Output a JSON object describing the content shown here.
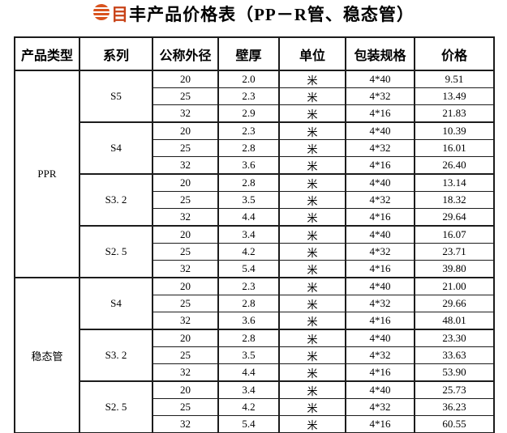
{
  "title": {
    "brand_colored_char": "目",
    "text": "丰产品价格表（PP－R管、稳态管）",
    "accent_color": "#d9531e",
    "brand_char_color": "#c84318"
  },
  "table": {
    "headers": [
      "产品类型",
      "系列",
      "公称外径",
      "壁厚",
      "单位",
      "包装规格",
      "价格"
    ],
    "groups": [
      {
        "product_type": "PPR",
        "series": [
          {
            "name": "S5",
            "rows": [
              [
                "20",
                "2.0",
                "米",
                "4*40",
                "9.51"
              ],
              [
                "25",
                "2.3",
                "米",
                "4*32",
                "13.49"
              ],
              [
                "32",
                "2.9",
                "米",
                "4*16",
                "21.83"
              ]
            ]
          },
          {
            "name": "S4",
            "rows": [
              [
                "20",
                "2.3",
                "米",
                "4*40",
                "10.39"
              ],
              [
                "25",
                "2.8",
                "米",
                "4*32",
                "16.01"
              ],
              [
                "32",
                "3.6",
                "米",
                "4*16",
                "26.40"
              ]
            ]
          },
          {
            "name": "S3. 2",
            "rows": [
              [
                "20",
                "2.8",
                "米",
                "4*40",
                "13.14"
              ],
              [
                "25",
                "3.5",
                "米",
                "4*32",
                "18.32"
              ],
              [
                "32",
                "4.4",
                "米",
                "4*16",
                "29.64"
              ]
            ]
          },
          {
            "name": "S2. 5",
            "rows": [
              [
                "20",
                "3.4",
                "米",
                "4*40",
                "16.07"
              ],
              [
                "25",
                "4.2",
                "米",
                "4*32",
                "23.71"
              ],
              [
                "32",
                "5.4",
                "米",
                "4*16",
                "39.80"
              ]
            ]
          }
        ]
      },
      {
        "product_type": "稳态管",
        "series": [
          {
            "name": "S4",
            "rows": [
              [
                "20",
                "2.3",
                "米",
                "4*40",
                "21.00"
              ],
              [
                "25",
                "2.8",
                "米",
                "4*32",
                "29.66"
              ],
              [
                "32",
                "3.6",
                "米",
                "4*16",
                "48.01"
              ]
            ]
          },
          {
            "name": "S3. 2",
            "rows": [
              [
                "20",
                "2.8",
                "米",
                "4*40",
                "23.30"
              ],
              [
                "25",
                "3.5",
                "米",
                "4*32",
                "33.63"
              ],
              [
                "32",
                "4.4",
                "米",
                "4*16",
                "53.90"
              ]
            ]
          },
          {
            "name": "S2. 5",
            "rows": [
              [
                "20",
                "3.4",
                "米",
                "4*40",
                "25.73"
              ],
              [
                "25",
                "4.2",
                "米",
                "4*32",
                "36.23"
              ],
              [
                "32",
                "5.4",
                "米",
                "4*16",
                "60.55"
              ]
            ]
          }
        ]
      }
    ]
  }
}
